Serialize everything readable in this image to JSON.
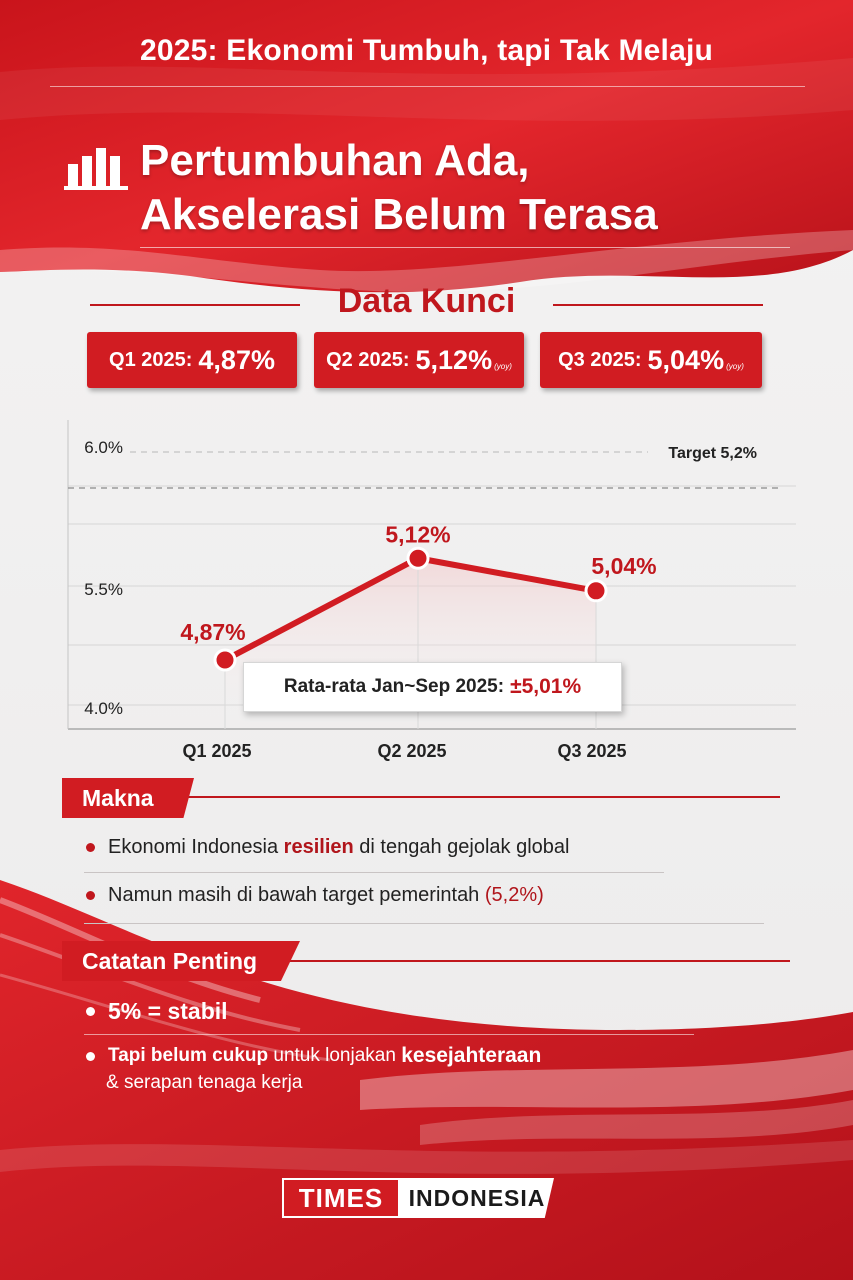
{
  "header": {
    "top_title": "2025: Ekonomi Tumbuh, tapi Tak Melaju",
    "main_title_line1": "Pertumbuhan Ada,",
    "main_title_line2": "Akselerasi Belum Terasa",
    "icon": "bar-chart-icon"
  },
  "key_data": {
    "title": "Data Kunci",
    "items": [
      {
        "label": "Q1 2025:",
        "value": "4,87%",
        "unit": ""
      },
      {
        "label": "Q2 2025:",
        "value": "5,12%",
        "unit": "(yoy)"
      },
      {
        "label": "Q3 2025:",
        "value": "5,04%",
        "unit": "(yoy)"
      }
    ]
  },
  "chart_data": {
    "type": "line",
    "categories": [
      "Q1 2025",
      "Q2 2025",
      "Q3 2025"
    ],
    "values": [
      4.87,
      5.12,
      5.04
    ],
    "data_labels": [
      "4,87%",
      "5,12%",
      "5,04%"
    ],
    "y_tick_labels": [
      "6.0%",
      "5.5%",
      "4.0%"
    ],
    "target_label": "Target 5,2%",
    "target_value": 5.2,
    "average_label": "Rata-rata Jan~Sep 2025:",
    "average_value": "±5,01%",
    "grid": true,
    "line_color": "#d11c22"
  },
  "makna": {
    "title": "Makna",
    "b1_pre": "Ekonomi Indonesia",
    "b1_hl": "resilien",
    "b1_post": "di tengah gejolak global",
    "b2_pre": "Namun masih di bawah target pemerintah",
    "b2_hl": "(5,2%)"
  },
  "catatan": {
    "title": "Catatan Penting",
    "b1": "5% = stabil",
    "b2_a": "Tapi belum cukup",
    "b2_b": "untuk lonjakan",
    "b2_c": "kesejahteraan",
    "b2_d": "& serapan tenaga kerja"
  },
  "logo": {
    "times": "TIMES",
    "indonesia": "INDONESIA"
  },
  "colors": {
    "brand_red": "#d11c22",
    "dark_red": "#b0151b"
  }
}
